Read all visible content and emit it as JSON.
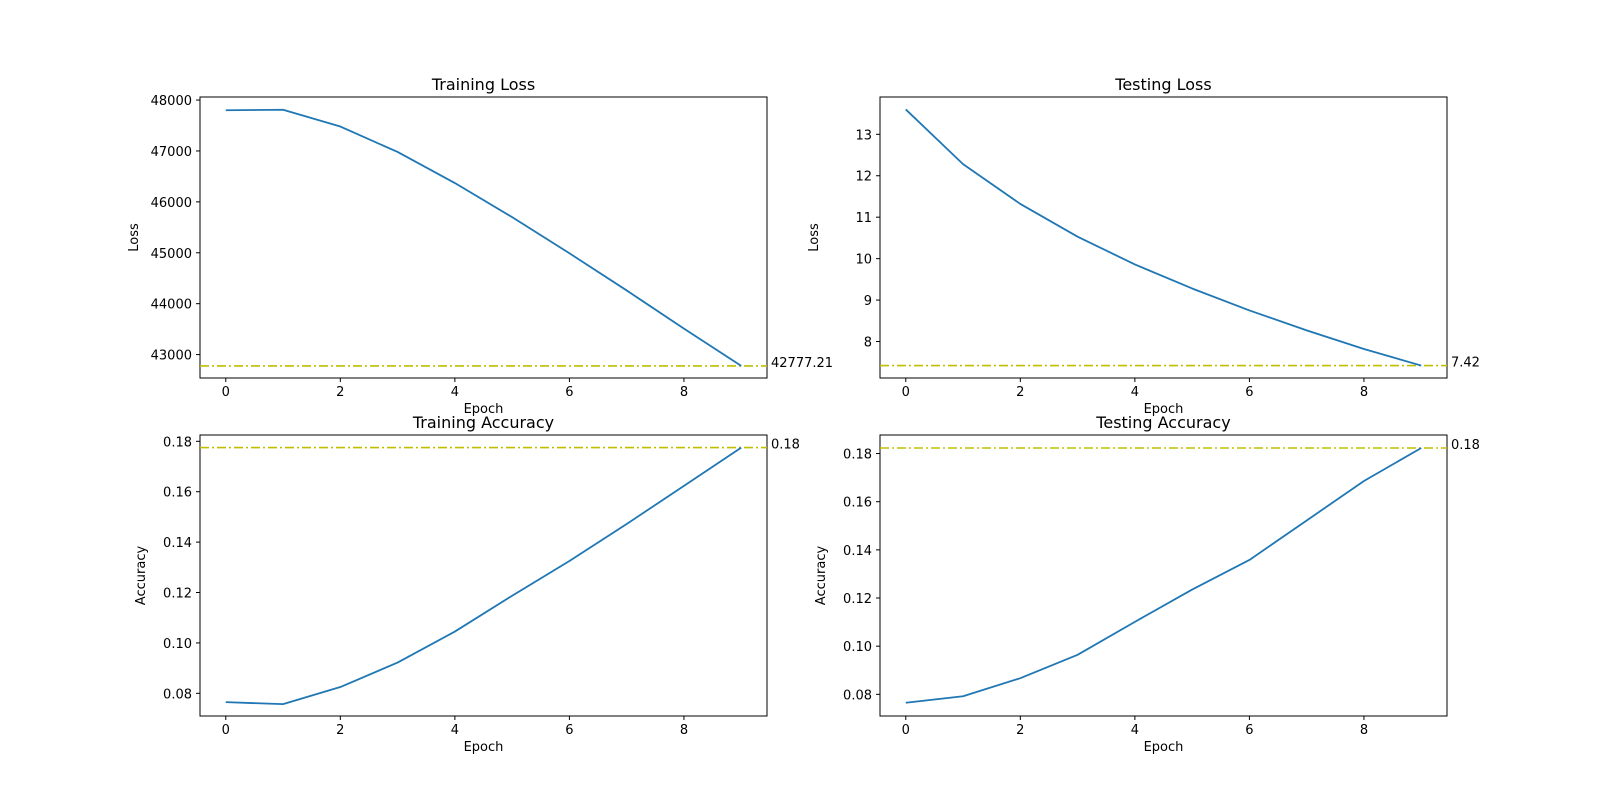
{
  "chart_data": [
    {
      "type": "line",
      "title": "Training Loss",
      "xlabel": "Epoch",
      "ylabel": "Loss",
      "x": [
        0,
        1,
        2,
        3,
        4,
        5,
        6,
        7,
        8,
        9
      ],
      "series": [
        {
          "values": [
            47800,
            47810,
            47480,
            46980,
            46370,
            45700,
            44990,
            44260,
            43510,
            42777.21
          ]
        }
      ],
      "xlim": [
        -0.45,
        9.45
      ],
      "ylim": [
        42540,
        48060
      ],
      "xticks": [
        0,
        2,
        4,
        6,
        8
      ],
      "yticks": [
        43000,
        44000,
        45000,
        46000,
        47000,
        48000
      ],
      "reference_line": {
        "value": 42777.21,
        "label": "42777.21",
        "style": "dash-dot",
        "color": "#bfbf00"
      },
      "line_color": "#1f77b4",
      "grid": false,
      "tick_decimals": 0
    },
    {
      "type": "line",
      "title": "Testing Loss",
      "xlabel": "Epoch",
      "ylabel": "Loss",
      "x": [
        0,
        1,
        2,
        3,
        4,
        5,
        6,
        7,
        8,
        9
      ],
      "series": [
        {
          "values": [
            13.6,
            12.28,
            11.32,
            10.53,
            9.86,
            9.28,
            8.75,
            8.27,
            7.82,
            7.42
          ]
        }
      ],
      "xlim": [
        -0.45,
        9.45
      ],
      "ylim": [
        7.12,
        13.9
      ],
      "xticks": [
        0,
        2,
        4,
        6,
        8
      ],
      "yticks": [
        8,
        9,
        10,
        11,
        12,
        13
      ],
      "reference_line": {
        "value": 7.42,
        "label": "7.42",
        "style": "dash-dot",
        "color": "#bfbf00"
      },
      "line_color": "#1f77b4",
      "grid": false,
      "tick_decimals": 0
    },
    {
      "type": "line",
      "title": "Training Accuracy",
      "xlabel": "Epoch",
      "ylabel": "Accuracy",
      "x": [
        0,
        1,
        2,
        3,
        4,
        5,
        6,
        7,
        8,
        9
      ],
      "series": [
        {
          "values": [
            0.0765,
            0.0757,
            0.0825,
            0.0922,
            0.1045,
            0.1187,
            0.1325,
            0.1472,
            0.1623,
            0.1775
          ]
        }
      ],
      "xlim": [
        -0.45,
        9.45
      ],
      "ylim": [
        0.071,
        0.1825
      ],
      "xticks": [
        0,
        2,
        4,
        6,
        8
      ],
      "yticks": [
        0.08,
        0.1,
        0.12,
        0.14,
        0.16,
        0.18
      ],
      "reference_line": {
        "value": 0.1775,
        "label": "0.18",
        "style": "dash-dot",
        "color": "#bfbf00"
      },
      "line_color": "#1f77b4",
      "grid": false,
      "tick_decimals": 2
    },
    {
      "type": "line",
      "title": "Testing Accuracy",
      "xlabel": "Epoch",
      "ylabel": "Accuracy",
      "x": [
        0,
        1,
        2,
        3,
        4,
        5,
        6,
        7,
        8,
        9
      ],
      "series": [
        {
          "values": [
            0.0765,
            0.0792,
            0.0867,
            0.0964,
            0.1101,
            0.1235,
            0.1358,
            0.1522,
            0.1686,
            0.1823
          ]
        }
      ],
      "xlim": [
        -0.45,
        9.45
      ],
      "ylim": [
        0.071,
        0.1877
      ],
      "xticks": [
        0,
        2,
        4,
        6,
        8
      ],
      "yticks": [
        0.08,
        0.1,
        0.12,
        0.14,
        0.16,
        0.18
      ],
      "reference_line": {
        "value": 0.1823,
        "label": "0.18",
        "style": "dash-dot",
        "color": "#bfbf00"
      },
      "line_color": "#1f77b4",
      "grid": false,
      "tick_decimals": 2
    }
  ]
}
